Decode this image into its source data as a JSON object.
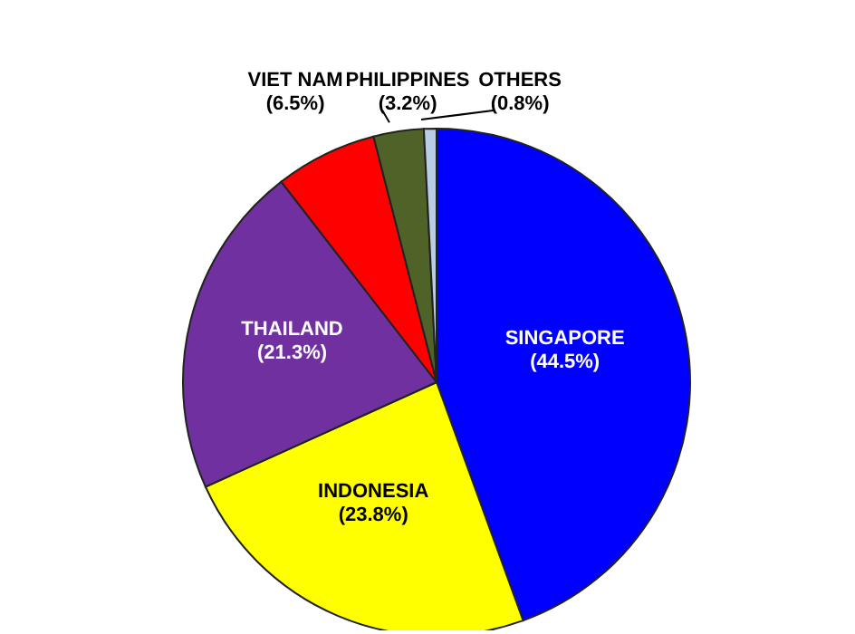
{
  "chart_data": {
    "type": "pie",
    "categories": [
      "SINGAPORE",
      "INDONESIA",
      "THAILAND",
      "VIET NAM",
      "PHILIPPINES",
      "OTHERS"
    ],
    "values": [
      44.5,
      23.8,
      21.3,
      6.5,
      3.2,
      0.8
    ],
    "value_labels": [
      "(44.5%)",
      "(23.8%)",
      "(21.3%)",
      "(6.5%)",
      "(3.2%)",
      "(0.8%)"
    ],
    "colors": [
      "#0000ff",
      "#ffff00",
      "#7030a0",
      "#ff0000",
      "#4f6228",
      "#b9cde5"
    ],
    "legend": false
  }
}
